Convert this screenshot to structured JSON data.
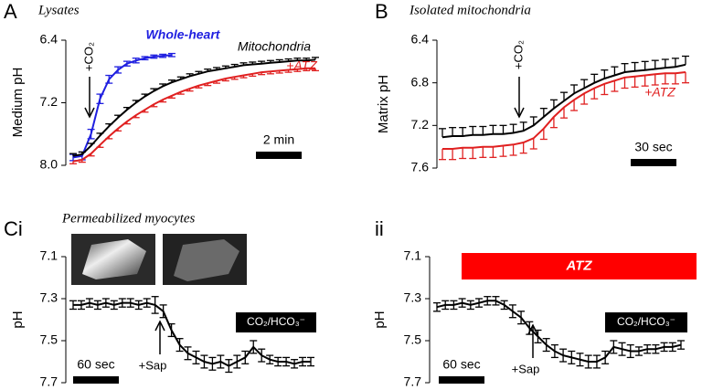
{
  "chart_data": [
    {
      "type": "line",
      "panel": "A",
      "title": "Lysates",
      "ylabel": "Medium pH",
      "ylim": [
        6.4,
        8.0
      ],
      "yticks": [
        6.4,
        7.2,
        {
          "value": 8.0,
          "label": "8.0"
        }
      ],
      "y_inverted": true,
      "series": [
        {
          "name": "Whole-heart",
          "color": "#1f1fe0",
          "error_bars": "both",
          "values": [
            7.9,
            7.88,
            7.6,
            7.15,
            6.9,
            6.78,
            6.7,
            6.66,
            6.63,
            6.61,
            6.6,
            6.59
          ],
          "errors": [
            0.04,
            0.05,
            0.06,
            0.06,
            0.05,
            0.04,
            0.03,
            0.03,
            0.02,
            0.02,
            0.02,
            0.02
          ]
        },
        {
          "name": "Mitochondria",
          "color": "#000000",
          "error_bars": "up",
          "values": [
            7.88,
            7.86,
            7.75,
            7.62,
            7.5,
            7.39,
            7.29,
            7.2,
            7.12,
            7.05,
            6.99,
            6.94,
            6.9,
            6.86,
            6.83,
            6.8,
            6.78,
            6.76,
            6.74,
            6.72,
            6.71,
            6.7,
            6.69,
            6.68,
            6.67,
            6.66,
            6.66,
            6.65
          ],
          "errors": [
            0.03,
            0.03,
            0.03,
            0.03,
            0.03,
            0.03,
            0.03,
            0.03,
            0.03,
            0.03,
            0.03,
            0.03,
            0.03,
            0.03,
            0.03,
            0.03,
            0.03,
            0.03,
            0.03,
            0.03,
            0.03,
            0.03,
            0.03,
            0.03,
            0.03,
            0.03,
            0.03,
            0.03
          ]
        },
        {
          "name": "+ATZ",
          "color": "#e02020",
          "error_bars": "down",
          "values": [
            7.95,
            7.93,
            7.85,
            7.74,
            7.63,
            7.53,
            7.44,
            7.36,
            7.29,
            7.22,
            7.16,
            7.11,
            7.06,
            7.02,
            6.98,
            6.95,
            6.92,
            6.89,
            6.87,
            6.85,
            6.83,
            6.81,
            6.8,
            6.79,
            6.78,
            6.77,
            6.76,
            6.76
          ],
          "errors": [
            0.03,
            0.03,
            0.03,
            0.03,
            0.03,
            0.03,
            0.03,
            0.03,
            0.03,
            0.03,
            0.03,
            0.03,
            0.03,
            0.03,
            0.03,
            0.03,
            0.03,
            0.03,
            0.03,
            0.03,
            0.03,
            0.03,
            0.03,
            0.03,
            0.03,
            0.03,
            0.03,
            0.03
          ]
        }
      ],
      "annotations": {
        "arrow": "+CO₂",
        "scale_bar": "2 min"
      }
    },
    {
      "type": "line",
      "panel": "B",
      "title": "Isolated mitochondria",
      "ylabel": "Matrix pH",
      "ylim": [
        6.4,
        7.6
      ],
      "yticks": [
        6.4,
        6.8,
        7.2,
        7.6
      ],
      "y_inverted": true,
      "series": [
        {
          "color": "#000000",
          "error_bars": "up",
          "values": [
            7.31,
            7.3,
            7.3,
            7.29,
            7.29,
            7.28,
            7.28,
            7.27,
            7.25,
            7.2,
            7.12,
            7.04,
            6.97,
            6.9,
            6.85,
            6.8,
            6.76,
            6.73,
            6.7,
            6.69,
            6.68,
            6.67,
            6.66,
            6.65,
            6.63
          ],
          "errors": [
            0.08,
            0.08,
            0.08,
            0.08,
            0.08,
            0.08,
            0.08,
            0.08,
            0.08,
            0.08,
            0.08,
            0.08,
            0.08,
            0.08,
            0.08,
            0.08,
            0.08,
            0.08,
            0.08,
            0.08,
            0.08,
            0.08,
            0.08,
            0.08,
            0.08
          ]
        },
        {
          "name": "+ATZ",
          "color": "#e02020",
          "error_bars": "down",
          "values": [
            7.42,
            7.42,
            7.41,
            7.41,
            7.4,
            7.4,
            7.39,
            7.38,
            7.36,
            7.32,
            7.23,
            7.12,
            7.03,
            6.96,
            6.9,
            6.85,
            6.81,
            6.78,
            6.75,
            6.74,
            6.73,
            6.72,
            6.71,
            6.71,
            6.7
          ],
          "errors": [
            0.1,
            0.1,
            0.1,
            0.1,
            0.1,
            0.1,
            0.1,
            0.1,
            0.1,
            0.1,
            0.1,
            0.1,
            0.1,
            0.1,
            0.1,
            0.1,
            0.1,
            0.1,
            0.1,
            0.1,
            0.1,
            0.1,
            0.1,
            0.1,
            0.1
          ]
        }
      ],
      "annotations": {
        "arrow": "+CO₂",
        "scale_bar": "30 sec"
      }
    },
    {
      "type": "line",
      "panel": "Ci",
      "title": "Permeabilized myocytes",
      "ylabel": "pH",
      "ylim": [
        7.1,
        7.7
      ],
      "yticks": [
        7.1,
        7.3,
        7.5,
        7.7
      ],
      "y_inverted": true,
      "series": [
        {
          "color": "#000000",
          "error_bars": "both",
          "values": [
            7.33,
            7.33,
            7.32,
            7.33,
            7.32,
            7.33,
            7.32,
            7.32,
            7.33,
            7.32,
            7.33,
            7.36,
            7.45,
            7.52,
            7.56,
            7.58,
            7.6,
            7.61,
            7.6,
            7.62,
            7.6,
            7.58,
            7.53,
            7.57,
            7.59,
            7.6,
            7.6,
            7.61,
            7.6,
            7.6
          ],
          "errors": [
            0.02,
            0.02,
            0.02,
            0.02,
            0.02,
            0.02,
            0.02,
            0.02,
            0.02,
            0.02,
            0.04,
            0.03,
            0.03,
            0.03,
            0.03,
            0.03,
            0.03,
            0.03,
            0.03,
            0.03,
            0.03,
            0.03,
            0.03,
            0.03,
            0.02,
            0.02,
            0.02,
            0.02,
            0.02,
            0.02
          ]
        }
      ],
      "annotations": {
        "arrow": "+Sap",
        "scale_bar": "60 sec",
        "gas": "CO₂/HCO₃⁻"
      }
    },
    {
      "type": "line",
      "panel": "ii",
      "ylabel": "pH",
      "ylim": [
        7.1,
        7.7
      ],
      "yticks": [
        7.1,
        7.3,
        7.5,
        7.7
      ],
      "y_inverted": true,
      "series": [
        {
          "color": "#000000",
          "error_bars": "both",
          "values": [
            7.34,
            7.33,
            7.33,
            7.32,
            7.33,
            7.32,
            7.31,
            7.31,
            7.33,
            7.36,
            7.39,
            7.44,
            7.48,
            7.52,
            7.55,
            7.57,
            7.58,
            7.59,
            7.6,
            7.6,
            7.58,
            7.53,
            7.54,
            7.55,
            7.55,
            7.54,
            7.54,
            7.53,
            7.53,
            7.52
          ],
          "errors": [
            0.02,
            0.02,
            0.02,
            0.02,
            0.02,
            0.02,
            0.02,
            0.02,
            0.02,
            0.03,
            0.03,
            0.03,
            0.03,
            0.03,
            0.03,
            0.03,
            0.03,
            0.03,
            0.03,
            0.03,
            0.03,
            0.03,
            0.03,
            0.03,
            0.02,
            0.02,
            0.02,
            0.02,
            0.02,
            0.02
          ]
        }
      ],
      "annotations": {
        "arrow": "+Sap",
        "scale_bar": "60 sec",
        "gas": "CO₂/HCO₃⁻",
        "drug": "ATZ"
      }
    }
  ]
}
